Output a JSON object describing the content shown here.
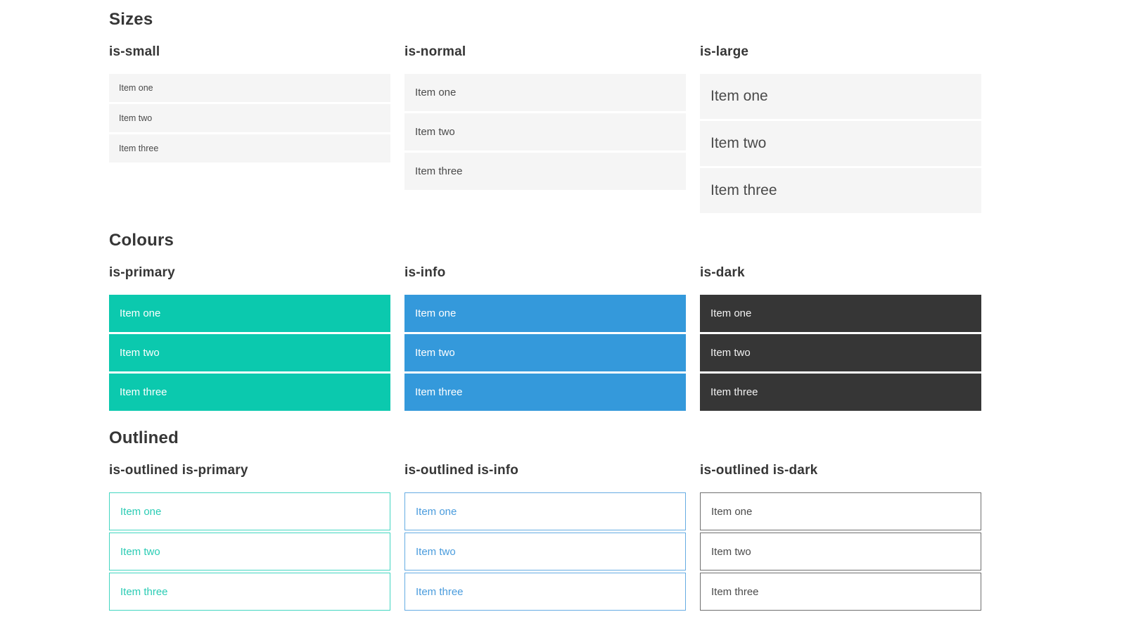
{
  "colors": {
    "primary": "#0bc9ae",
    "info": "#3499db",
    "dark": "#363636",
    "item_bg": "#f5f5f5",
    "item_text": "#4a4a4a",
    "heading_text": "#363636",
    "outlined_primary_border": "#43d6c1",
    "outlined_primary_text": "#2accb4",
    "outlined_info_border": "#66ace3",
    "outlined_info_text": "#4a9cdd",
    "outlined_dark_border": "#6f6f6f",
    "outlined_dark_text": "#4a4a4a"
  },
  "sections": [
    {
      "title": "Sizes",
      "columns": [
        {
          "heading": "is-small",
          "items": [
            "Item one",
            "Item two",
            "Item three"
          ]
        },
        {
          "heading": "is-normal",
          "items": [
            "Item one",
            "Item two",
            "Item three"
          ]
        },
        {
          "heading": "is-large",
          "items": [
            "Item one",
            "Item two",
            "Item three"
          ]
        }
      ]
    },
    {
      "title": "Colours",
      "columns": [
        {
          "heading": "is-primary",
          "items": [
            "Item one",
            "Item two",
            "Item three"
          ]
        },
        {
          "heading": "is-info",
          "items": [
            "Item one",
            "Item two",
            "Item three"
          ]
        },
        {
          "heading": "is-dark",
          "items": [
            "Item one",
            "Item two",
            "Item three"
          ]
        }
      ]
    },
    {
      "title": "Outlined",
      "columns": [
        {
          "heading": "is-outlined is-primary",
          "items": [
            "Item one",
            "Item two",
            "Item three"
          ]
        },
        {
          "heading": "is-outlined is-info",
          "items": [
            "Item one",
            "Item two",
            "Item three"
          ]
        },
        {
          "heading": "is-outlined is-dark",
          "items": [
            "Item one",
            "Item two",
            "Item three"
          ]
        }
      ]
    }
  ]
}
